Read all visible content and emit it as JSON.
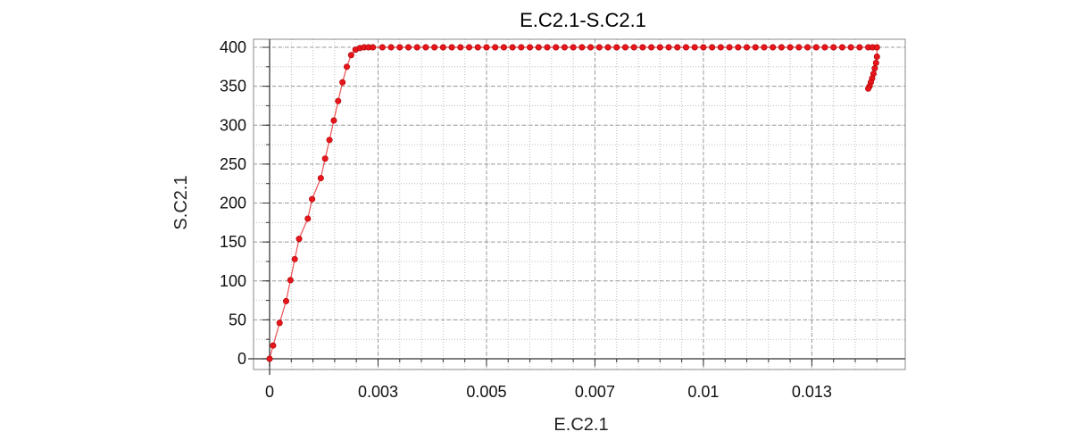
{
  "chart_data": {
    "type": "line",
    "title": "E.C2.1-S.C2.1",
    "xlabel": "E.C2.1",
    "ylabel": "S.C2.1",
    "xlim": [
      0,
      0.0142
    ],
    "ylim": [
      0,
      400
    ],
    "x_ticks": [
      0,
      0.0025,
      0.005,
      0.0075,
      0.01,
      0.0125
    ],
    "x_tick_labels": [
      "0",
      "0.003",
      "0.005",
      "0.007",
      "0.01",
      "0.013"
    ],
    "y_ticks": [
      0,
      50,
      100,
      150,
      200,
      250,
      300,
      350,
      400
    ],
    "y_tick_labels": [
      "0",
      "50",
      "100",
      "150",
      "200",
      "250",
      "300",
      "350",
      "400"
    ],
    "grid": true,
    "legend": "none",
    "colors": {
      "series": "#e8161c",
      "grid": "#bdbdbd",
      "frame": "#8a8a8a"
    },
    "series": [
      {
        "x": [
          0,
          8e-05,
          0.00023,
          0.00038,
          0.00048,
          0.00058,
          0.00068,
          0.00088,
          0.00098,
          0.00118,
          0.00128,
          0.00138,
          0.00148,
          0.00158,
          0.00168,
          0.00178,
          0.00188,
          0.00198,
          0.00208,
          0.00218,
          0.00228,
          0.00238,
          0.0026,
          0.0028,
          0.003,
          0.0032,
          0.0034,
          0.0036,
          0.0038,
          0.004,
          0.0042,
          0.0044,
          0.0046,
          0.0048,
          0.005,
          0.0052,
          0.0054,
          0.0056,
          0.0058,
          0.006,
          0.0062,
          0.0064,
          0.0066,
          0.0068,
          0.007,
          0.0072,
          0.0074,
          0.0076,
          0.0078,
          0.008,
          0.0082,
          0.0084,
          0.0086,
          0.0088,
          0.009,
          0.0092,
          0.0094,
          0.0096,
          0.0098,
          0.01,
          0.0102,
          0.0104,
          0.0106,
          0.0108,
          0.011,
          0.0112,
          0.0114,
          0.0116,
          0.0118,
          0.012,
          0.0122,
          0.0124,
          0.0126,
          0.0128,
          0.013,
          0.0132,
          0.0134,
          0.0136,
          0.0138,
          0.0139,
          0.014,
          0.014,
          0.01398,
          0.01395,
          0.01392,
          0.01389,
          0.01386,
          0.01383,
          0.0138
        ],
        "y": [
          0,
          17,
          46,
          74,
          101,
          128,
          154,
          180,
          205,
          232,
          257,
          281,
          306,
          331,
          355,
          375,
          390,
          397,
          399,
          400,
          400,
          400,
          400,
          400,
          400,
          400,
          400,
          400,
          400,
          400,
          400,
          400,
          400,
          400,
          400,
          400,
          400,
          400,
          400,
          400,
          400,
          400,
          400,
          400,
          400,
          400,
          400,
          400,
          400,
          400,
          400,
          400,
          400,
          400,
          400,
          400,
          400,
          400,
          400,
          400,
          400,
          400,
          400,
          400,
          400,
          400,
          400,
          400,
          400,
          400,
          400,
          400,
          400,
          400,
          400,
          400,
          400,
          400,
          400,
          400,
          400,
          388,
          380,
          373,
          366,
          360,
          355,
          350,
          347
        ]
      }
    ]
  }
}
